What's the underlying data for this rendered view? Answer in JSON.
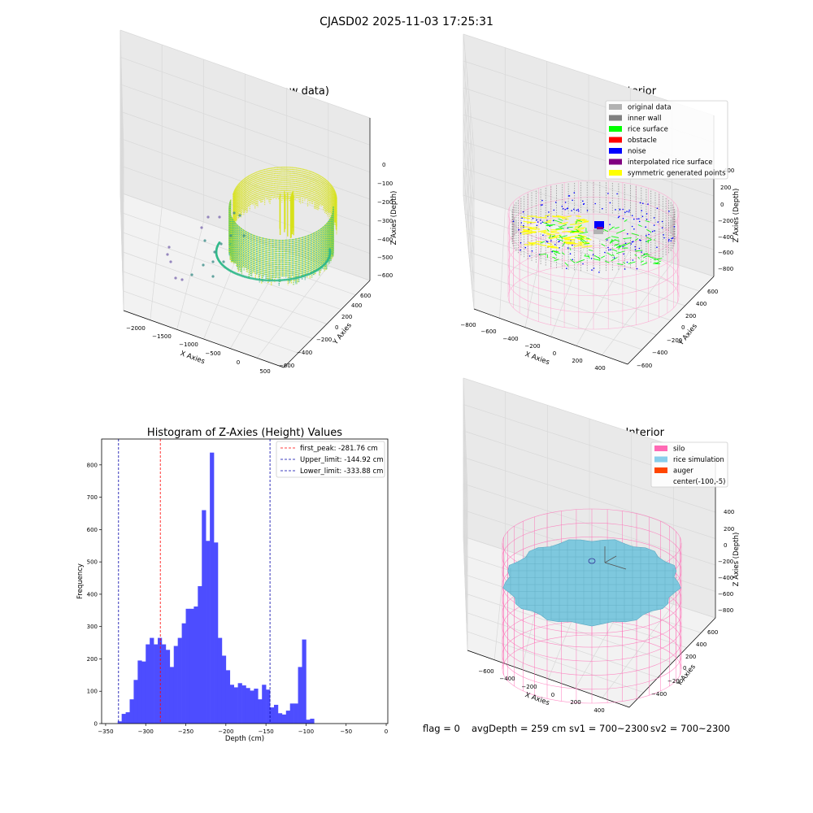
{
  "figure": {
    "suptitle": "CJASD02 2025-11-03 17:25:31",
    "footer": {
      "flag": "flag = 0",
      "avg_depth": "avgDepth = 259 cm",
      "sv1": "sv1 = 700~2300",
      "sv2": "sv2 = 700~2300"
    }
  },
  "chart_data": [
    {
      "type": "scatter",
      "projection": "3d",
      "title": "3D Plot of Silo Interior(row data)",
      "xlabel": "X Axies",
      "ylabel": "Y Axies",
      "zlabel": "Z Axies (Depth)",
      "x_ticks": [
        "−2000",
        "−1500",
        "−1000",
        "−500",
        "0",
        "500"
      ],
      "y_ticks": [
        "−600",
        "−400",
        "−200",
        "0",
        "200",
        "400",
        "600"
      ],
      "z_ticks": [
        "0",
        "−100",
        "−200",
        "−300",
        "−400",
        "−500",
        "−600"
      ],
      "xlim": [
        -2200,
        600
      ],
      "ylim": [
        -650,
        650
      ],
      "zlim": [
        -620,
        0
      ],
      "colormap": "viridis",
      "point_color_mid": "#2fb88a",
      "point_color_high": "#d7e219",
      "outlier_color": "#7e6bb0"
    },
    {
      "type": "scatter",
      "projection": "3d",
      "title": "3D classify of Silo Interior",
      "xlabel": "X Axies",
      "ylabel": "Y Axies",
      "zlabel": "Z Axies (Depth)",
      "x_ticks": [
        "−800",
        "−600",
        "−400",
        "−200",
        "0",
        "200",
        "400"
      ],
      "y_ticks": [
        "−600",
        "−400",
        "−200",
        "0",
        "200",
        "400",
        "600"
      ],
      "z_ticks": [
        "400",
        "200",
        "0",
        "−200",
        "−400",
        "−600",
        "−800"
      ],
      "legend": [
        {
          "label": "original data",
          "color": "#b2b2b2"
        },
        {
          "label": "inner wall",
          "color": "#808080"
        },
        {
          "label": "rice surface",
          "color": "#00ff00"
        },
        {
          "label": "obstacle",
          "color": "#ff0000"
        },
        {
          "label": "noise",
          "color": "#0000ff"
        },
        {
          "label": "interpolated rice surface",
          "color": "#800080"
        },
        {
          "label": "symmetric generated points",
          "color": "#ffff00"
        }
      ],
      "legend_loc": "upper right",
      "silo_wire_color": "#ff9ccc"
    },
    {
      "type": "bar",
      "title": "Histogram of Z-Axies (Height) Values",
      "xlabel": "Depth (cm)",
      "ylabel": "Frequency",
      "bin_start": -335,
      "bin_width": 5,
      "values": [
        7,
        30,
        35,
        75,
        135,
        195,
        192,
        245,
        265,
        245,
        265,
        245,
        228,
        175,
        240,
        265,
        310,
        355,
        355,
        362,
        425,
        660,
        565,
        838,
        560,
        265,
        210,
        165,
        120,
        112,
        125,
        118,
        110,
        102,
        108,
        75,
        120,
        105,
        50,
        58,
        32,
        28,
        40,
        62,
        62,
        175,
        260,
        12,
        15
      ],
      "xlim": [
        -355,
        2
      ],
      "ylim": [
        0,
        880
      ],
      "x_ticks": [
        -350,
        -300,
        -250,
        -200,
        -150,
        -100,
        -50,
        0
      ],
      "x_tick_labels": [
        "−350",
        "−300",
        "−250",
        "−200",
        "−150",
        "−100",
        "−50",
        "0"
      ],
      "y_ticks": [
        0,
        100,
        200,
        300,
        400,
        500,
        600,
        700,
        800
      ],
      "bar_color": "#4d4dff",
      "vlines": [
        {
          "label": "first_peak: -281.76 cm",
          "x": -281.76,
          "color": "#ff0000"
        },
        {
          "label": "Upper_limit: -144.92 cm",
          "x": -144.92,
          "color": "#0000aa"
        },
        {
          "label": "Lower_limit: -333.88 cm",
          "x": -333.88,
          "color": "#0000aa"
        }
      ],
      "legend_loc": "upper right"
    },
    {
      "type": "surface",
      "projection": "3d",
      "title": "3D simulation of Silo Interior",
      "xlabel": "X Axies",
      "ylabel": "Y Axies",
      "zlabel": "Z Axies (Depth)",
      "x_ticks": [
        "−600",
        "−400",
        "−200",
        "0",
        "200",
        "400"
      ],
      "y_ticks": [
        "−400",
        "−200",
        "0",
        "200",
        "400",
        "600"
      ],
      "z_ticks": [
        "400",
        "200",
        "0",
        "−200",
        "−400",
        "−600",
        "−800"
      ],
      "legend": [
        {
          "label": "silo",
          "color": "#ff69b4"
        },
        {
          "label": "rice simulation",
          "color": "#87ceeb"
        },
        {
          "label": "auger",
          "color": "#ff4500"
        },
        {
          "label": "center(-100,-5)",
          "color": ""
        }
      ],
      "legend_loc": "upper right",
      "surface_color": "#7ec8de"
    }
  ]
}
